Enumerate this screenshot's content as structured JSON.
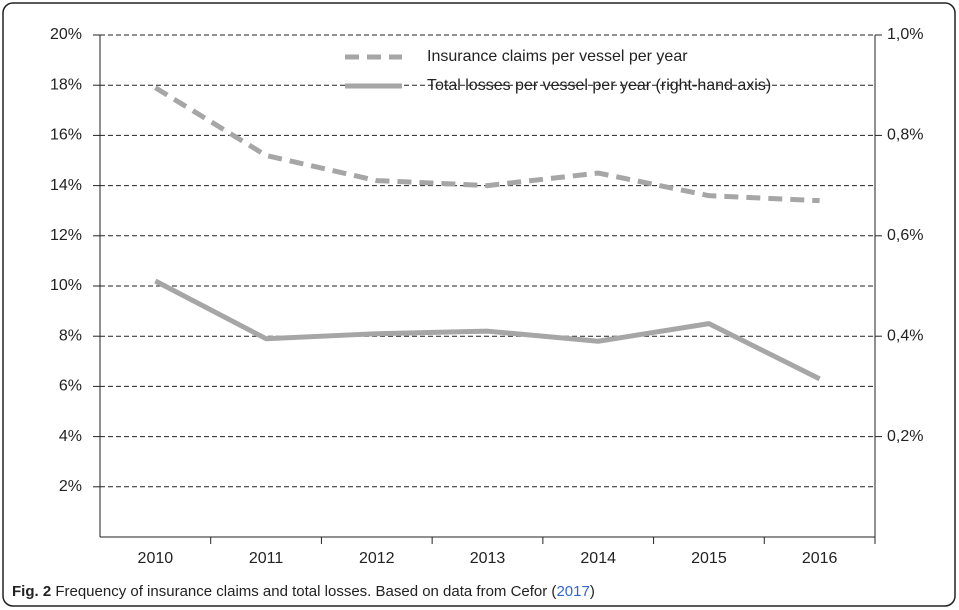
{
  "chart_data": {
    "type": "line",
    "categories": [
      "2010",
      "2011",
      "2012",
      "2013",
      "2014",
      "2015",
      "2016"
    ],
    "series": [
      {
        "name": "Insurance claims per vessel per year",
        "color": "#a6a6a6",
        "line_style": "dashed",
        "axis": "y",
        "values": [
          17.9,
          15.2,
          14.2,
          14.0,
          14.5,
          13.6,
          13.4
        ]
      },
      {
        "name": "Total losses per vessel per year (right-hand axis)",
        "color": "#a6a6a6",
        "line_style": "solid",
        "axis": "y2",
        "values": [
          0.51,
          0.395,
          0.405,
          0.41,
          0.39,
          0.425,
          0.315
        ]
      }
    ],
    "ylim": [
      0,
      20
    ],
    "yticks": [
      {
        "value": 2,
        "label": "2%"
      },
      {
        "value": 4,
        "label": "4%"
      },
      {
        "value": 6,
        "label": "6%"
      },
      {
        "value": 8,
        "label": "8%"
      },
      {
        "value": 10,
        "label": "10%"
      },
      {
        "value": 12,
        "label": "12%"
      },
      {
        "value": 14,
        "label": "14%"
      },
      {
        "value": 16,
        "label": "16%"
      },
      {
        "value": 18,
        "label": "18%"
      },
      {
        "value": 20,
        "label": "20%"
      }
    ],
    "y2lim": [
      0,
      1.0
    ],
    "y2ticks": [
      {
        "value": 0.2,
        "label": "0,2%"
      },
      {
        "value": 0.4,
        "label": "0,4%"
      },
      {
        "value": 0.6,
        "label": "0,6%"
      },
      {
        "value": 0.8,
        "label": "0,8%"
      },
      {
        "value": 1.0,
        "label": "1,0%"
      }
    ],
    "grid": true,
    "legend": "top"
  },
  "caption": {
    "label": "Fig. 2",
    "text": "Frequency of insurance claims and total losses. Based on data from Cefor (",
    "ref": "2017",
    "close": ")"
  }
}
